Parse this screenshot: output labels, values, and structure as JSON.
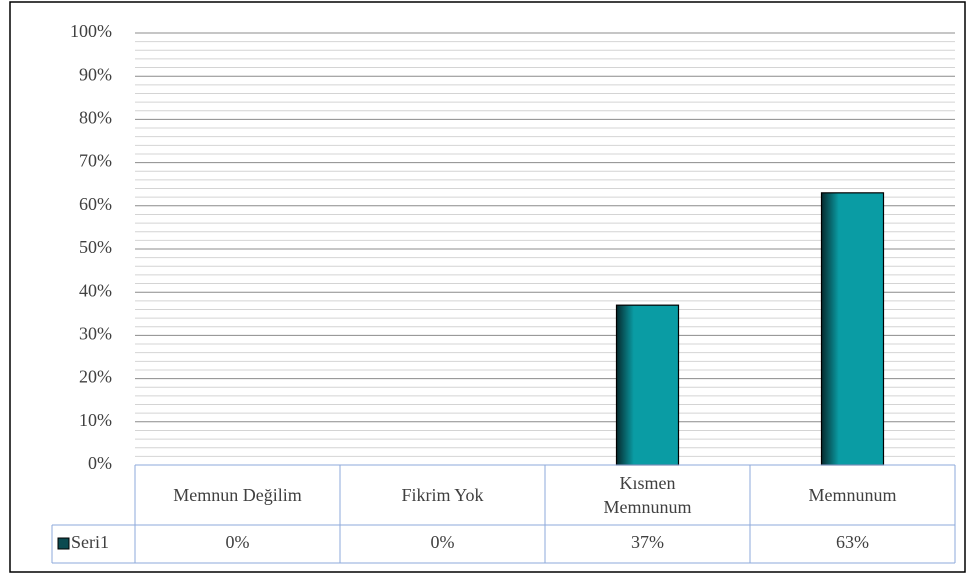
{
  "chart_data": {
    "type": "bar",
    "categories": [
      "Memnun Değilim",
      "Fikrim Yok",
      "Kısmen Memnunum",
      "Memnunum"
    ],
    "series": [
      {
        "name": "Seri1",
        "color": "#0a9ca4",
        "values": [
          0,
          0,
          37,
          63
        ],
        "value_labels": [
          "0%",
          "0%",
          "37%",
          "63%"
        ]
      }
    ],
    "ylim": [
      0,
      100
    ],
    "yticks": [
      {
        "value": 0,
        "label": "0%"
      },
      {
        "value": 10,
        "label": "10%"
      },
      {
        "value": 20,
        "label": "20%"
      },
      {
        "value": 30,
        "label": "30%"
      },
      {
        "value": 40,
        "label": "40%"
      },
      {
        "value": 50,
        "label": "50%"
      },
      {
        "value": 60,
        "label": "60%"
      },
      {
        "value": 70,
        "label": "70%"
      },
      {
        "value": 80,
        "label": "80%"
      },
      {
        "value": 90,
        "label": "90%"
      },
      {
        "value": 100,
        "label": "100%"
      }
    ],
    "minor_yticks": [
      2,
      4,
      6,
      8,
      12,
      14,
      16,
      18,
      22,
      24,
      26,
      28,
      32,
      34,
      36,
      38,
      42,
      44,
      46,
      48,
      52,
      54,
      56,
      58,
      62,
      64,
      66,
      68,
      72,
      74,
      76,
      78,
      82,
      84,
      86,
      88,
      92,
      94,
      96,
      98
    ],
    "grid": true,
    "data_table": true
  }
}
